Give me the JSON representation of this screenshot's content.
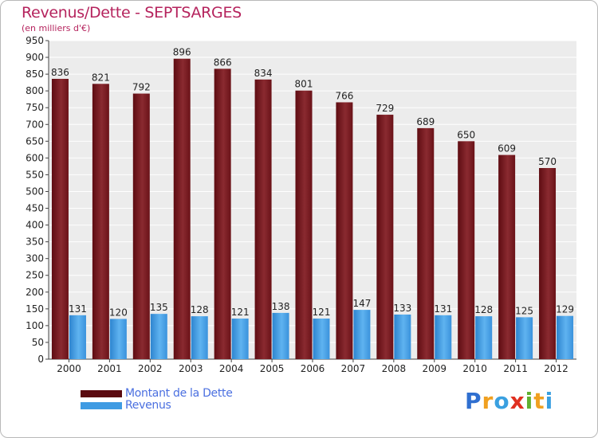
{
  "header": {
    "title": "Revenus/Dette - SEPTSARGES",
    "subtitle": "(en milliers d'€)"
  },
  "chart_data": {
    "type": "bar",
    "categories": [
      "2000",
      "2001",
      "2002",
      "2003",
      "2004",
      "2005",
      "2006",
      "2007",
      "2008",
      "2009",
      "2010",
      "2011",
      "2012"
    ],
    "series": [
      {
        "name": "Montant de la Dette",
        "color": "#7a1a20",
        "values": [
          836,
          821,
          792,
          896,
          866,
          834,
          801,
          766,
          729,
          689,
          650,
          609,
          570
        ]
      },
      {
        "name": "Revenus",
        "color": "#3f9be3",
        "values": [
          131,
          120,
          135,
          128,
          121,
          138,
          121,
          147,
          133,
          131,
          128,
          125,
          129
        ]
      }
    ],
    "ylim": [
      0,
      950
    ],
    "yticks": [
      0,
      50,
      100,
      150,
      200,
      250,
      300,
      350,
      400,
      450,
      500,
      550,
      600,
      650,
      700,
      750,
      800,
      850,
      900,
      950
    ],
    "grid": true,
    "legend_position": "bottom-left"
  },
  "legend": {
    "items": [
      {
        "label": "Montant de la Dette",
        "color": "#5a0a10"
      },
      {
        "label": "Revenus",
        "color": "#3f9be3"
      }
    ]
  },
  "logo": {
    "letters": [
      "P",
      "r",
      "o",
      "x",
      "i",
      "t",
      "i"
    ],
    "colors": [
      "#2f6fd0",
      "#f0a020",
      "#3aa0e0",
      "#e03020",
      "#60b030",
      "#f0a020",
      "#3aa0e0"
    ]
  }
}
